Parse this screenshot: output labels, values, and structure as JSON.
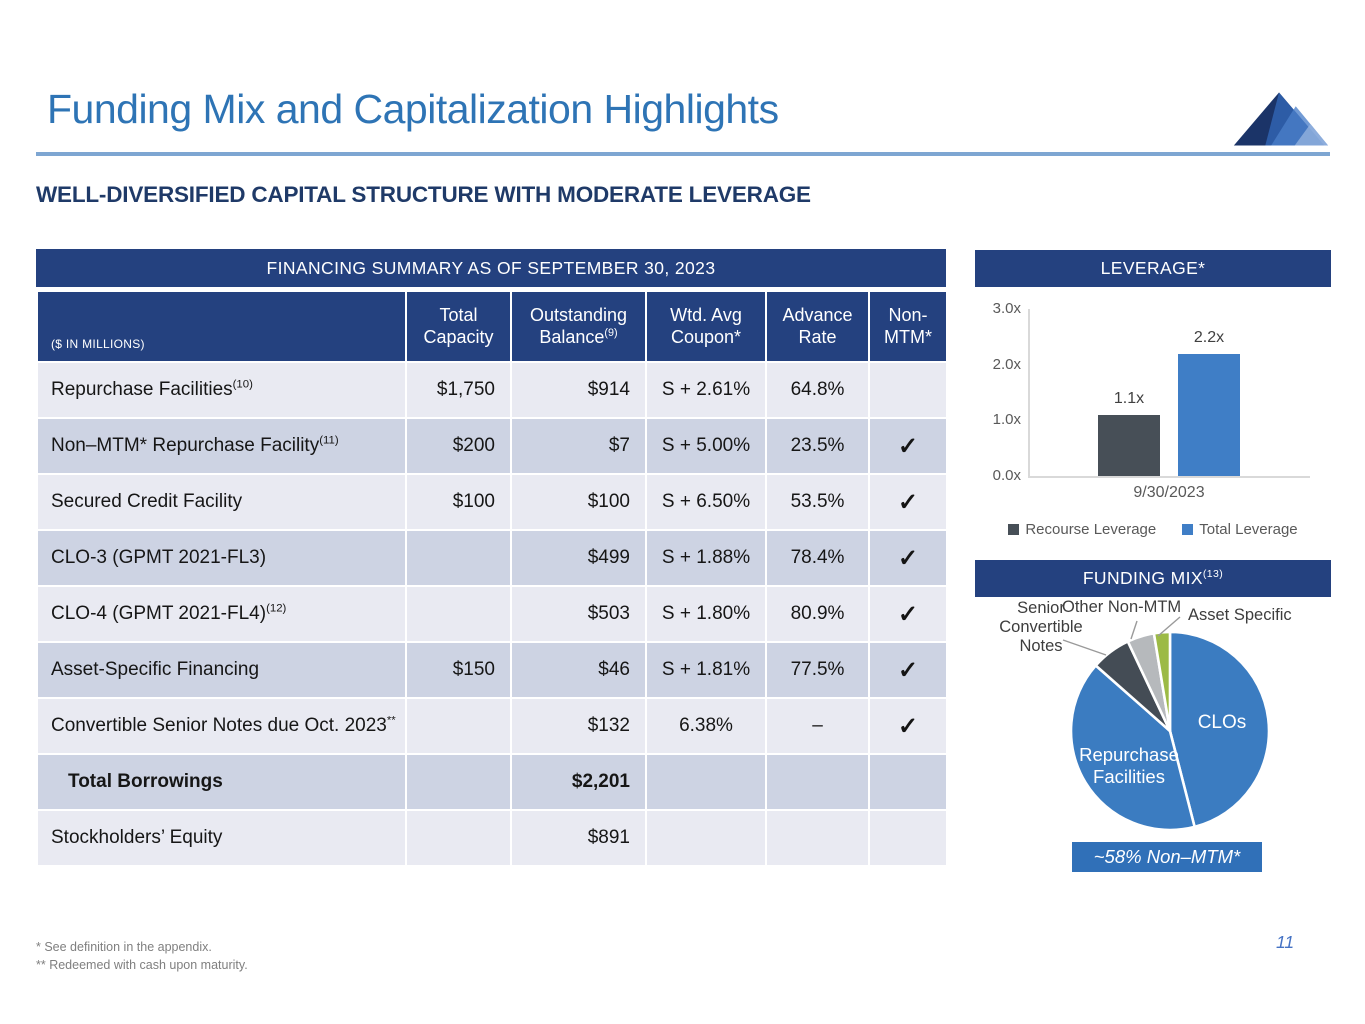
{
  "slide": {
    "title": "Funding Mix and Capitalization Highlights",
    "subtitle": "WELL-DIVERSIFIED CAPITAL STRUCTURE WITH MODERATE LEVERAGE",
    "page_number": "11",
    "footnotes": [
      "* See definition in the appendix.",
      "** Redeemed with cash upon maturity."
    ]
  },
  "theme": {
    "banner_navy": "#24417f",
    "title_blue": "#2e74b5",
    "rule_blue": "#7ea6d2",
    "subtitle_navy": "#1f3a68",
    "row_light": "#e9eaf2",
    "row_dark": "#cdd3e3",
    "accent_blue": "#3b7cc1",
    "dark_gray": "#474f57",
    "green": "#9cba45"
  },
  "financing_table": {
    "title": "FINANCING SUMMARY AS OF SEPTEMBER 30, 2023",
    "unit_label": "($ IN MILLIONS)",
    "check_glyph": "✓",
    "columns": [
      {
        "label": "Total Capacity",
        "sup": ""
      },
      {
        "label": "Outstanding Balance",
        "sup": "(9)"
      },
      {
        "label": "Wtd. Avg Coupon*",
        "sup": ""
      },
      {
        "label": "Advance Rate",
        "sup": ""
      },
      {
        "label": "Non-MTM*",
        "sup": ""
      }
    ],
    "rows": [
      {
        "label": "Repurchase Facilities",
        "sup": "(10)",
        "capacity": "$1,750",
        "balance": "$914",
        "coupon": "S + 2.61%",
        "advance": "64.8%",
        "non_mtm": false,
        "bold": false
      },
      {
        "label": "Non–MTM* Repurchase Facility",
        "sup": "(11)",
        "capacity": "$200",
        "balance": "$7",
        "coupon": "S + 5.00%",
        "advance": "23.5%",
        "non_mtm": true,
        "bold": false
      },
      {
        "label": "Secured Credit Facility",
        "sup": "",
        "capacity": "$100",
        "balance": "$100",
        "coupon": "S + 6.50%",
        "advance": "53.5%",
        "non_mtm": true,
        "bold": false
      },
      {
        "label": "CLO-3 (GPMT 2021-FL3)",
        "sup": "",
        "capacity": "",
        "balance": "$499",
        "coupon": "S + 1.88%",
        "advance": "78.4%",
        "non_mtm": true,
        "bold": false
      },
      {
        "label": "CLO-4 (GPMT 2021-FL4)",
        "sup": "(12)",
        "capacity": "",
        "balance": "$503",
        "coupon": "S + 1.80%",
        "advance": "80.9%",
        "non_mtm": true,
        "bold": false
      },
      {
        "label": "Asset-Specific Financing",
        "sup": "",
        "capacity": "$150",
        "balance": "$46",
        "coupon": "S + 1.81%",
        "advance": "77.5%",
        "non_mtm": true,
        "bold": false
      },
      {
        "label": "Convertible Senior Notes due Oct. 2023",
        "sup": "**",
        "capacity": "",
        "balance": "$132",
        "coupon": "6.38%",
        "advance": "–",
        "non_mtm": true,
        "bold": false
      },
      {
        "label": "Total Borrowings",
        "sup": "",
        "capacity": "",
        "balance": "$2,201",
        "coupon": "",
        "advance": "",
        "non_mtm": false,
        "bold": true
      },
      {
        "label": "Stockholders’ Equity",
        "sup": "",
        "capacity": "",
        "balance": "$891",
        "coupon": "",
        "advance": "",
        "non_mtm": false,
        "bold": false
      }
    ]
  },
  "chart_data": [
    {
      "type": "bar",
      "title": "LEVERAGE*",
      "categories": [
        "9/30/2023"
      ],
      "series": [
        {
          "name": "Recourse Leverage",
          "values": [
            1.1
          ],
          "color": "#474f57"
        },
        {
          "name": "Total Leverage",
          "values": [
            2.2
          ],
          "color": "#3f7ec6"
        }
      ],
      "value_labels": [
        "1.1x",
        "2.2x"
      ],
      "yticks": [
        "0.0x",
        "1.0x",
        "2.0x",
        "3.0x"
      ],
      "ylim": [
        0,
        3
      ],
      "grid": false,
      "legend_position": "bottom"
    },
    {
      "type": "pie",
      "title": "FUNDING MIX",
      "title_sup": "(13)",
      "slices": [
        {
          "label": "CLOs",
          "value": 46.0,
          "color": "#3b7cc1",
          "label_inside": true
        },
        {
          "label": "Repurchase Facilities",
          "value": 40.5,
          "color": "#3b7cc1",
          "label_inside": true
        },
        {
          "label": "Senior Convertible Notes",
          "value": 6.5,
          "color": "#444c55",
          "label_inside": false
        },
        {
          "label": "Other Non-MTM",
          "value": 4.4,
          "color": "#b6b9bc",
          "label_inside": false
        },
        {
          "label": "Asset Specific",
          "value": 2.6,
          "color": "#9cba45",
          "label_inside": false
        }
      ],
      "start_angle_deg_from_top": 0,
      "direction": "clockwise",
      "callout": "~58% Non–MTM*"
    }
  ]
}
